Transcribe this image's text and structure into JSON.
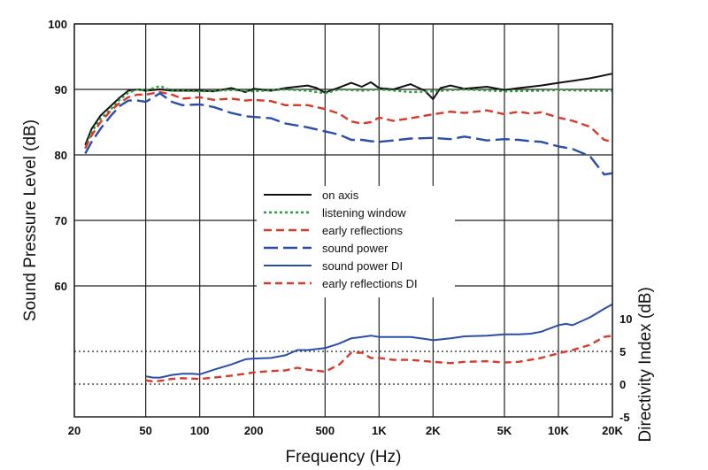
{
  "chart_data": {
    "type": "line",
    "title": "",
    "xlabel": "Frequency (Hz)",
    "ylabel": "Sound Pressure Level (dB)",
    "y2label": "Directivity Index (dB)",
    "xscale": "log",
    "xlim": [
      20,
      20000
    ],
    "ylim": [
      40,
      100
    ],
    "y2lim": [
      -5,
      10
    ],
    "x_ticks": [
      {
        "value": 20,
        "label": "20"
      },
      {
        "value": 50,
        "label": "50"
      },
      {
        "value": 100,
        "label": "100"
      },
      {
        "value": 200,
        "label": "200"
      },
      {
        "value": 500,
        "label": "500"
      },
      {
        "value": 1000,
        "label": "1K"
      },
      {
        "value": 2000,
        "label": "2K"
      },
      {
        "value": 5000,
        "label": "5K"
      },
      {
        "value": 10000,
        "label": "10K"
      },
      {
        "value": 20000,
        "label": "20K"
      }
    ],
    "y_ticks": [
      {
        "value": 60,
        "label": "60"
      },
      {
        "value": 70,
        "label": "70"
      },
      {
        "value": 80,
        "label": "80"
      },
      {
        "value": 90,
        "label": "90"
      },
      {
        "value": 100,
        "label": "100"
      }
    ],
    "y2_ticks": [
      {
        "value": -5,
        "label": "-5"
      },
      {
        "value": 0,
        "label": "0"
      },
      {
        "value": 5,
        "label": "5"
      },
      {
        "value": 10,
        "label": "10"
      }
    ],
    "y2_dotted_lines": [
      0,
      5
    ],
    "grid": true,
    "legend_position": "center",
    "series": [
      {
        "name": "on axis",
        "axis": "left",
        "color": "#111111",
        "dash": "solid",
        "x": [
          23,
          25,
          28,
          32,
          36,
          40,
          45,
          50,
          60,
          70,
          80,
          100,
          120,
          150,
          180,
          200,
          250,
          300,
          400,
          450,
          500,
          600,
          700,
          800,
          900,
          1000,
          1200,
          1500,
          1800,
          2000,
          2200,
          2500,
          3000,
          4000,
          5000,
          6000,
          7000,
          8000,
          10000,
          12000,
          15000,
          17000,
          20000
        ],
        "y": [
          81.5,
          84,
          86,
          87.5,
          88.8,
          89.8,
          90,
          89.8,
          90,
          89.8,
          89.8,
          89.8,
          89.7,
          90.2,
          89.6,
          90.1,
          89.8,
          90.2,
          90.6,
          90.2,
          89.5,
          90.3,
          91.0,
          90.4,
          91.1,
          90.2,
          90.0,
          90.8,
          89.8,
          88.5,
          90.2,
          90.6,
          90.1,
          90.4,
          89.9,
          90.2,
          90.4,
          90.6,
          91.0,
          91.3,
          91.7,
          92.0,
          92.4
        ]
      },
      {
        "name": "listening window",
        "axis": "left",
        "color": "#2e9a3a",
        "dash": "dotted",
        "x": [
          23,
          25,
          28,
          32,
          36,
          40,
          45,
          50,
          60,
          70,
          80,
          100,
          150,
          200,
          300,
          400,
          500,
          600,
          800,
          1000,
          1500,
          2000,
          3000,
          5000,
          8000,
          10000,
          15000,
          20000
        ],
        "y": [
          81,
          83.5,
          85.5,
          87,
          88.5,
          89.5,
          90,
          89.8,
          90.5,
          89.8,
          89.8,
          89.7,
          89.9,
          89.7,
          90.0,
          89.8,
          89.4,
          90.0,
          89.8,
          90.0,
          89.6,
          89.7,
          90.0,
          89.7,
          89.8,
          89.9,
          89.8,
          89.8
        ]
      },
      {
        "name": "early reflections",
        "axis": "left",
        "color": "#d63a2a",
        "dash": "short-dash",
        "x": [
          23,
          25,
          28,
          32,
          36,
          40,
          45,
          50,
          60,
          70,
          80,
          100,
          120,
          150,
          180,
          200,
          250,
          300,
          400,
          500,
          600,
          700,
          800,
          900,
          1000,
          1200,
          1500,
          2000,
          2500,
          3000,
          4000,
          5000,
          6000,
          7000,
          8000,
          10000,
          12000,
          15000,
          18000,
          20000
        ],
        "y": [
          81,
          83,
          85,
          86.8,
          88,
          88.8,
          89.2,
          89.2,
          89.6,
          89.2,
          88.6,
          88.8,
          88.4,
          88.6,
          88.3,
          88.4,
          88.2,
          87.6,
          87.6,
          87.0,
          86.3,
          85.1,
          84.8,
          85.0,
          85.7,
          85.2,
          85.6,
          86.2,
          86.6,
          86.4,
          86.8,
          86.2,
          86.6,
          86.3,
          86.5,
          85.7,
          85.2,
          84.3,
          82.3,
          82.0
        ]
      },
      {
        "name": "sound power",
        "axis": "left",
        "color": "#2a4ea8",
        "dash": "long-dash",
        "x": [
          23,
          25,
          28,
          32,
          36,
          40,
          45,
          50,
          60,
          70,
          80,
          100,
          120,
          150,
          180,
          200,
          250,
          300,
          400,
          500,
          600,
          700,
          800,
          900,
          1000,
          1200,
          1500,
          2000,
          2500,
          3000,
          4000,
          5000,
          6000,
          7000,
          8000,
          10000,
          12000,
          15000,
          18000,
          20000
        ],
        "y": [
          80.2,
          82,
          84,
          86,
          87.5,
          88.3,
          88.3,
          88.1,
          89.4,
          88.1,
          87.6,
          87.7,
          87.3,
          86.4,
          85.9,
          85.8,
          85.6,
          84.8,
          84.2,
          83.6,
          83.1,
          82.3,
          82.3,
          82.1,
          82.0,
          82.2,
          82.5,
          82.6,
          82.4,
          82.8,
          82.2,
          82.4,
          82.3,
          82.1,
          82.0,
          81.3,
          80.9,
          79.8,
          77.0,
          77.2
        ]
      },
      {
        "name": "sound power DI",
        "axis": "right",
        "color": "#2a4ea8",
        "dash": "solid",
        "x": [
          50,
          55,
          60,
          70,
          80,
          90,
          100,
          120,
          150,
          180,
          200,
          250,
          300,
          350,
          400,
          500,
          600,
          700,
          800,
          900,
          1000,
          1200,
          1500,
          1800,
          2000,
          2500,
          3000,
          4000,
          5000,
          6000,
          7000,
          8000,
          10000,
          11000,
          12000,
          15000,
          18000,
          20000
        ],
        "y": [
          1.2,
          1.0,
          1.0,
          1.4,
          1.6,
          1.6,
          1.5,
          2.2,
          3.0,
          3.8,
          3.9,
          4.0,
          4.4,
          5.2,
          5.2,
          5.5,
          6.2,
          7.0,
          7.2,
          7.4,
          7.2,
          7.2,
          7.2,
          6.9,
          6.7,
          7.0,
          7.3,
          7.4,
          7.6,
          7.6,
          7.7,
          8.0,
          9.0,
          9.2,
          9.0,
          10.2,
          11.5,
          12.2
        ]
      },
      {
        "name": "early reflections DI",
        "axis": "right",
        "color": "#d63a2a",
        "dash": "dashed",
        "x": [
          50,
          55,
          60,
          70,
          80,
          100,
          120,
          150,
          180,
          200,
          250,
          300,
          350,
          400,
          500,
          600,
          700,
          800,
          900,
          1000,
          1200,
          1500,
          2000,
          2500,
          3000,
          4000,
          5000,
          6000,
          8000,
          10000,
          12000,
          15000,
          18000,
          20000
        ],
        "y": [
          0.6,
          0.4,
          0.5,
          0.8,
          0.9,
          0.8,
          1.0,
          1.3,
          1.6,
          1.8,
          2.0,
          2.1,
          2.5,
          2.2,
          1.9,
          3.0,
          4.8,
          4.8,
          4.0,
          4.0,
          3.7,
          3.7,
          3.4,
          3.2,
          3.4,
          3.5,
          3.3,
          3.4,
          4.0,
          4.7,
          5.2,
          6.0,
          7.2,
          7.4
        ]
      }
    ]
  }
}
